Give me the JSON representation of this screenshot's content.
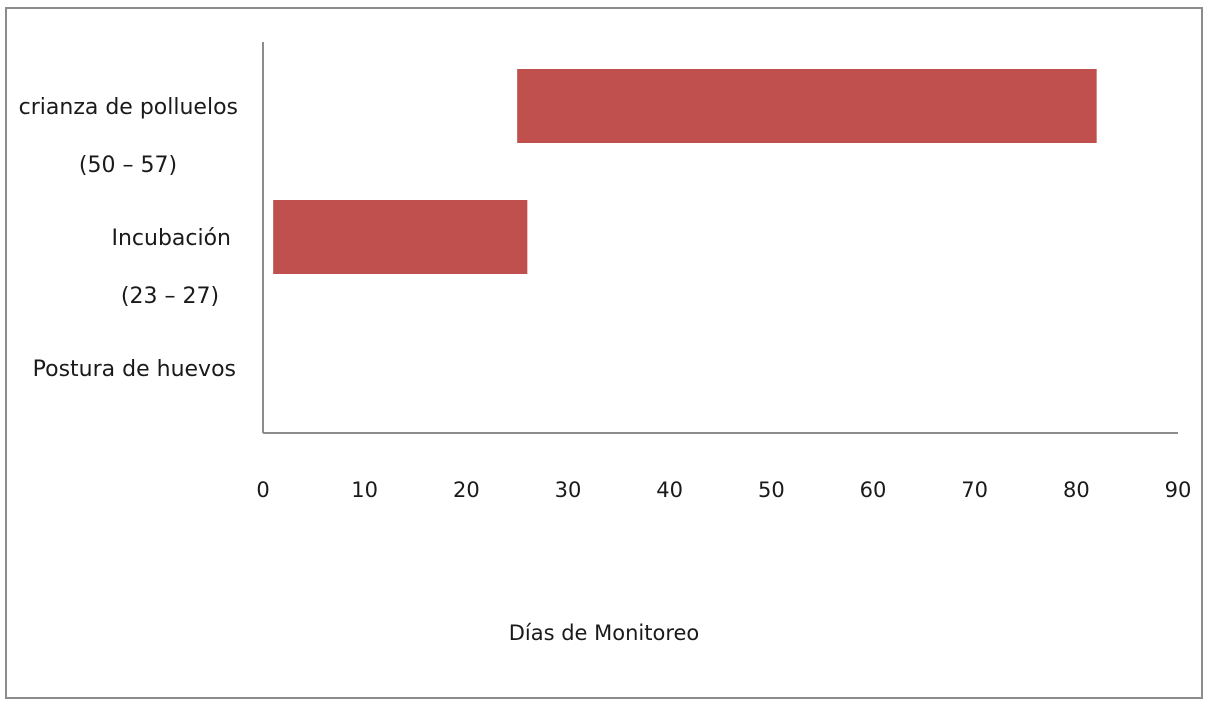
{
  "chart_data": {
    "type": "bar",
    "orientation": "horizontal",
    "categories": [
      {
        "label": "crianza de polluelos",
        "sublabel": "(50 – 57)"
      },
      {
        "label": "Incubación",
        "sublabel": "(23 – 27)"
      },
      {
        "label": "Postura de huevos",
        "sublabel": ""
      }
    ],
    "series": [
      {
        "values": [
          {
            "start": 25,
            "end": 82
          },
          {
            "start": 1,
            "end": 26
          },
          null
        ]
      }
    ],
    "xlabel": "Días de Monitoreo",
    "ylabel": "",
    "title": "",
    "xlim": [
      0,
      90
    ],
    "xticks": [
      "0",
      "10",
      "20",
      "30",
      "40",
      "50",
      "60",
      "70",
      "80",
      "90"
    ],
    "grid": false,
    "legend": "none",
    "bar_color": "#c0504d"
  }
}
